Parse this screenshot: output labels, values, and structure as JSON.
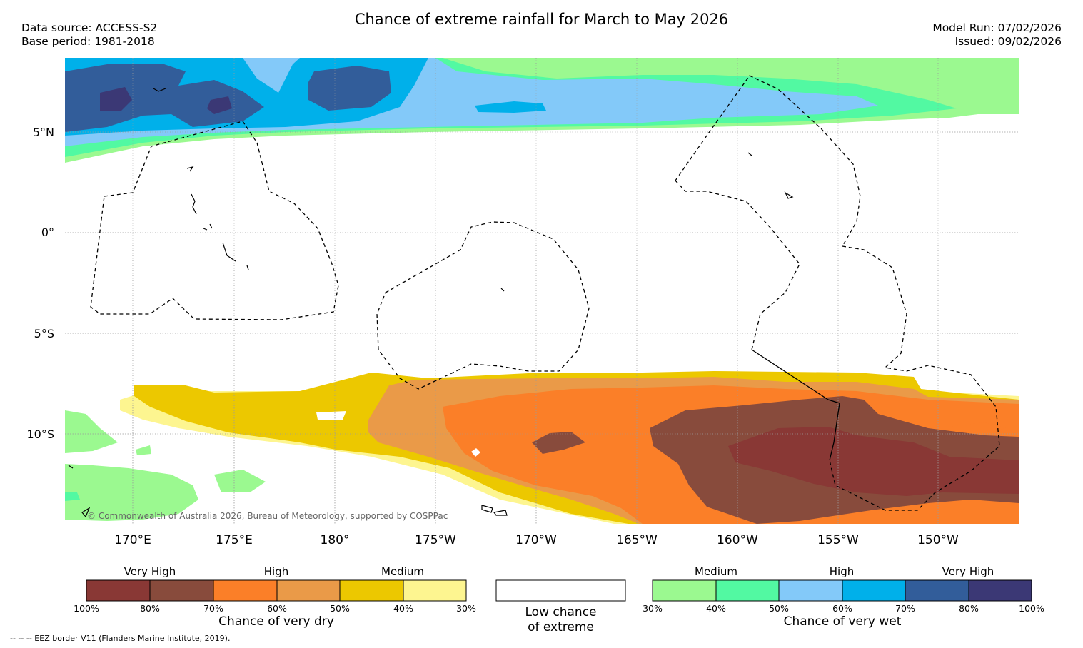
{
  "title": "Chance of extreme rainfall for March to May 2026",
  "meta": {
    "data_source": "Data source: ACCESS-S2",
    "base_period": "Base period: 1981-2018",
    "model_run": "Model Run: 07/02/2026",
    "issued": "Issued: 09/02/2026"
  },
  "map": {
    "region": "Central Pacific",
    "lat_labels": [
      "5°N",
      "0°",
      "5°S",
      "10°S"
    ],
    "lon_labels": [
      "170°E",
      "175°E",
      "180°",
      "175°W",
      "170°W",
      "165°W",
      "160°W",
      "155°W",
      "150°W"
    ],
    "credit": "© Commonwealth of Australia 2026, Bureau of Meteorology, supported by COSPPac",
    "footnote": "--  --  -- EEZ border V11 (Flanders Marine Institute, 2019)."
  },
  "colors": {
    "dry_very_high_1": "#893835",
    "dry_very_high_2": "#884b3c",
    "dry_high_1": "#fb7f28",
    "dry_high_2": "#ea9a48",
    "dry_medium_1": "#ecc800",
    "dry_medium_2": "#fdf590",
    "low": "#ffffff",
    "wet_medium_1": "#9bf990",
    "wet_medium_2": "#52f9a2",
    "wet_high_1": "#83c9f9",
    "wet_high_2": "#00b0ea",
    "wet_very_high_1": "#325d9a",
    "wet_very_high_2": "#3b3875"
  },
  "legend": {
    "dry": {
      "headers": [
        "Very High",
        "High",
        "Medium"
      ],
      "ticks": [
        "100%",
        "80%",
        "70%",
        "60%",
        "50%",
        "40%",
        "30%"
      ],
      "caption": "Chance of very dry"
    },
    "low": {
      "caption_line1": "Low chance",
      "caption_line2": "of extreme"
    },
    "wet": {
      "headers": [
        "Medium",
        "High",
        "Very High"
      ],
      "ticks": [
        "30%",
        "40%",
        "50%",
        "60%",
        "70%",
        "80%",
        "100%"
      ],
      "caption": "Chance of very wet"
    }
  }
}
